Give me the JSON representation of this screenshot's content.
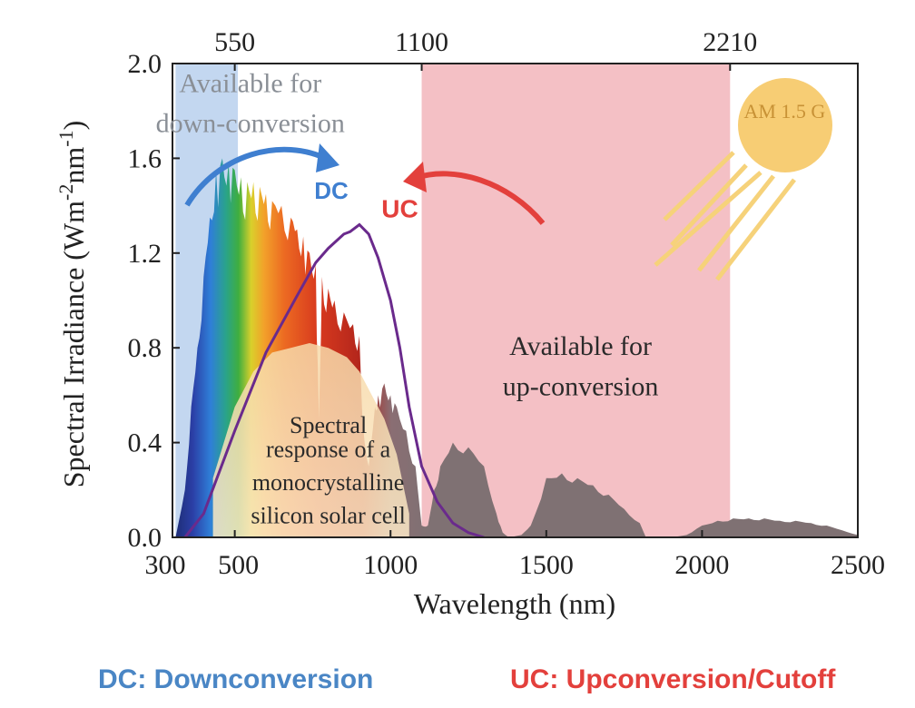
{
  "colors": {
    "dc_region": "#bcd3ee",
    "uc_region": "#f2b5bb",
    "dc_arrow": "#3f7fd0",
    "uc_arrow": "#e3403c",
    "response_curve": "#6a2a8c",
    "sun": "#f6c45c",
    "residual_spectrum": "#7f7173"
  },
  "chart_data": {
    "type": "area",
    "xlabel": "Wavelength (nm)",
    "ylabel": "Spectral Irradiance (Wm-2nm-1)",
    "xlim": [
      300,
      2500
    ],
    "ylim": [
      0.0,
      2.0
    ],
    "x_ticks": [
      "300",
      "500",
      "1000",
      "1500",
      "2000",
      "2500"
    ],
    "y_ticks": [
      "0.0",
      "0.4",
      "0.8",
      "1.2",
      "1.6",
      "2.0"
    ],
    "top_ticks": [
      {
        "label": "550",
        "x": 500
      },
      {
        "label": "1100",
        "x": 1100
      },
      {
        "label": "2210",
        "x": 2090
      }
    ],
    "regions": [
      {
        "name": "down-conversion",
        "x_start": 310,
        "x_end": 510
      },
      {
        "name": "up-conversion",
        "x_start": 1100,
        "x_end": 2090
      }
    ],
    "series": [
      {
        "name": "AM 1.5 G",
        "x": [
          310,
          340,
          360,
          380,
          400,
          420,
          440,
          460,
          480,
          500,
          520,
          540,
          560,
          580,
          600,
          620,
          650,
          680,
          700,
          720,
          740,
          760,
          770,
          780,
          800,
          820,
          850,
          880,
          900,
          910,
          930,
          950,
          960,
          980,
          1000,
          1020,
          1050,
          1080,
          1100,
          1120,
          1140,
          1160,
          1200,
          1250,
          1300,
          1340,
          1360,
          1380,
          1420,
          1450,
          1500,
          1550,
          1600,
          1650,
          1700,
          1750,
          1800,
          1820,
          1850,
          1900,
          1950,
          2000,
          2050,
          2100,
          2150,
          2200,
          2250,
          2300,
          2350,
          2400,
          2450,
          2500
        ],
        "values": [
          0.0,
          0.2,
          0.55,
          0.8,
          1.1,
          1.35,
          1.55,
          1.6,
          1.58,
          1.55,
          1.52,
          1.5,
          1.5,
          1.48,
          1.45,
          1.42,
          1.4,
          1.35,
          1.3,
          1.27,
          1.2,
          1.15,
          0.5,
          1.1,
          1.05,
          1.0,
          0.95,
          0.9,
          0.85,
          0.5,
          0.3,
          0.55,
          0.6,
          0.65,
          0.6,
          0.55,
          0.45,
          0.3,
          0.05,
          0.05,
          0.2,
          0.3,
          0.4,
          0.38,
          0.3,
          0.1,
          0.02,
          0.0,
          0.01,
          0.05,
          0.25,
          0.27,
          0.25,
          0.22,
          0.18,
          0.12,
          0.06,
          0.0,
          0.0,
          0.0,
          0.01,
          0.05,
          0.07,
          0.08,
          0.08,
          0.08,
          0.07,
          0.07,
          0.06,
          0.05,
          0.03,
          0.01
        ]
      },
      {
        "name": "Spectral response of a monocrystalline silicon solar cell",
        "x": [
          340,
          400,
          500,
          600,
          700,
          760,
          800,
          850,
          870,
          900,
          930,
          960,
          1000,
          1030,
          1060,
          1100,
          1150,
          1200,
          1250,
          1300
        ],
        "values": [
          0.0,
          0.1,
          0.45,
          0.78,
          1.02,
          1.16,
          1.22,
          1.28,
          1.29,
          1.32,
          1.28,
          1.18,
          1.0,
          0.8,
          0.55,
          0.3,
          0.15,
          0.06,
          0.02,
          0.0
        ]
      }
    ],
    "annotations": [
      {
        "text": "Available for",
        "x": 550,
        "y": 1.88
      },
      {
        "text": "down-conversion",
        "x": 550,
        "y": 1.71
      },
      {
        "text": "DC",
        "x": 810,
        "y": 1.43
      },
      {
        "text": "UC",
        "x": 1030,
        "y": 1.35
      },
      {
        "text": "Available for",
        "x": 1610,
        "y": 0.77
      },
      {
        "text": "up-conversion",
        "x": 1610,
        "y": 0.6
      },
      {
        "text": "Spectral",
        "x": 800,
        "y": 0.44
      },
      {
        "text": "response of a",
        "x": 800,
        "y": 0.34
      },
      {
        "text": "monocrystalline",
        "x": 800,
        "y": 0.2
      },
      {
        "text": "silicon solar cell",
        "x": 800,
        "y": 0.06
      },
      {
        "text": "AM 1.5 G",
        "x": 2265,
        "y": 1.77
      }
    ],
    "legend": [
      "DC: Downconversion",
      "UC: Upconversion/Cutoff"
    ],
    "grid": false
  }
}
